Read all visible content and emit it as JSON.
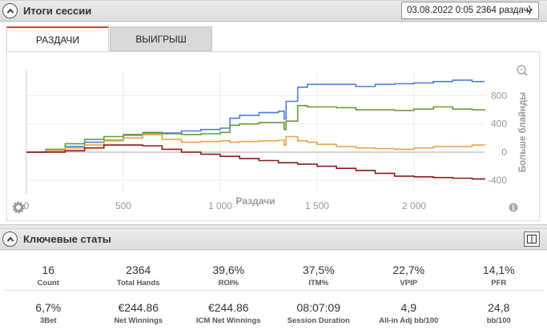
{
  "session_panel": {
    "title": "Итоги сессии",
    "selected_session": "03.08.2022 0:05 2364 раздач)",
    "tabs": [
      {
        "label": "РАЗДАЧИ",
        "active": true
      },
      {
        "label": "ВЫИГРЫШ",
        "active": false
      }
    ]
  },
  "chart_data": {
    "type": "line",
    "xlabel": "Раздачи",
    "ylabel": "Больше блайнды",
    "xlim": [
      0,
      2364
    ],
    "ylim": [
      -500,
      1100
    ],
    "x_ticks": [
      "0",
      "500",
      "1 000",
      "1 500",
      "2 000"
    ],
    "x_tick_values": [
      0,
      500,
      1000,
      1500,
      2000
    ],
    "y_ticks": [
      "800",
      "400",
      "0",
      "-400"
    ],
    "y_tick_values": [
      800,
      400,
      0,
      -400
    ],
    "series": [
      {
        "color": "#4a7fe0",
        "x": [
          0,
          100,
          200,
          300,
          400,
          500,
          600,
          700,
          800,
          900,
          1000,
          1050,
          1100,
          1200,
          1300,
          1330,
          1340,
          1400,
          1450,
          1500,
          1600,
          1700,
          1800,
          1900,
          2000,
          2100,
          2200,
          2300,
          2364
        ],
        "y": [
          0,
          20,
          80,
          140,
          170,
          240,
          260,
          270,
          300,
          320,
          340,
          480,
          520,
          560,
          580,
          470,
          720,
          920,
          960,
          960,
          960,
          930,
          960,
          970,
          980,
          1000,
          1020,
          1000,
          1000
        ]
      },
      {
        "color": "#6a9a3a",
        "x": [
          0,
          100,
          200,
          300,
          400,
          500,
          600,
          700,
          800,
          900,
          1000,
          1050,
          1100,
          1200,
          1300,
          1330,
          1340,
          1400,
          1450,
          1500,
          1600,
          1700,
          1800,
          1900,
          2000,
          2100,
          2200,
          2300,
          2364
        ],
        "y": [
          0,
          40,
          120,
          180,
          220,
          250,
          280,
          260,
          250,
          260,
          280,
          380,
          400,
          420,
          420,
          320,
          440,
          660,
          640,
          640,
          630,
          600,
          600,
          590,
          610,
          640,
          610,
          600,
          610
        ]
      },
      {
        "color": "#f0a04b",
        "x": [
          0,
          100,
          200,
          300,
          400,
          500,
          600,
          700,
          800,
          900,
          1000,
          1050,
          1100,
          1200,
          1300,
          1330,
          1340,
          1400,
          1450,
          1500,
          1600,
          1700,
          1800,
          1900,
          2000,
          2100,
          2200,
          2300,
          2364
        ],
        "y": [
          0,
          20,
          60,
          100,
          160,
          200,
          250,
          180,
          140,
          150,
          160,
          140,
          150,
          160,
          170,
          100,
          220,
          160,
          140,
          110,
          80,
          60,
          50,
          40,
          60,
          80,
          80,
          100,
          110
        ]
      },
      {
        "color": "#8b1a1a",
        "x": [
          0,
          100,
          200,
          300,
          400,
          500,
          600,
          700,
          800,
          900,
          1000,
          1100,
          1200,
          1300,
          1400,
          1500,
          1600,
          1700,
          1800,
          1900,
          2000,
          2100,
          2200,
          2300,
          2364
        ],
        "y": [
          0,
          0,
          20,
          60,
          100,
          100,
          90,
          40,
          0,
          -30,
          -60,
          -90,
          -120,
          -150,
          -170,
          -200,
          -230,
          -260,
          -300,
          -340,
          -350,
          -360,
          -370,
          -380,
          -370
        ]
      }
    ]
  },
  "key_stats": {
    "title": "Ключевые статы",
    "items": [
      {
        "value": "16",
        "label": "Count"
      },
      {
        "value": "2364",
        "label": "Total Hands"
      },
      {
        "value": "39,6%",
        "label": "ROI%"
      },
      {
        "value": "37,5%",
        "label": "ITM%"
      },
      {
        "value": "22,7%",
        "label": "VPIP"
      },
      {
        "value": "14,1%",
        "label": "PFR"
      },
      {
        "value": "6,7%",
        "label": "3Bet"
      },
      {
        "value": "€244.86",
        "label": "Net Winnings"
      },
      {
        "value": "€244.86",
        "label": "ICM Net Winnings"
      },
      {
        "value": "08:07:09",
        "label": "Session Duration"
      },
      {
        "value": "4,9",
        "label": "All-in Adj bb/100"
      },
      {
        "value": "24,8",
        "label": "bb/100"
      }
    ]
  }
}
